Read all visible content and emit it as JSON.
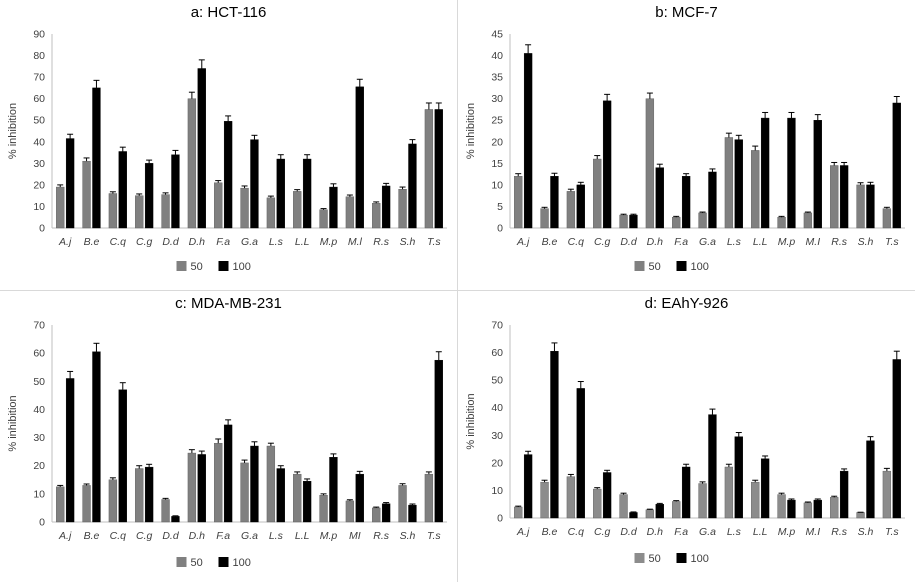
{
  "legend_labels": [
    "50",
    "100"
  ],
  "colors": {
    "series50_gray": "#808080",
    "series50_light": "#8c8c8c",
    "series100": "#000000",
    "axis": "#bfbfbf",
    "error": "#000000"
  },
  "chart_data": [
    {
      "type": "bar",
      "title": "a: HCT-116",
      "ylabel": "% inhibition",
      "ylim": [
        0,
        90
      ],
      "ystep": 10,
      "categories": [
        "A.j",
        "B.e",
        "C.q",
        "C.g",
        "D.d",
        "D.h",
        "F.a",
        "G.a",
        "L.s",
        "L.L",
        "M.p",
        "M.l",
        "R.s",
        "S.h",
        "T.s"
      ],
      "series": [
        {
          "name": "50",
          "values": [
            19,
            31,
            16,
            15,
            15.5,
            60,
            21,
            18.5,
            14,
            17,
            8.5,
            14.5,
            11.5,
            18,
            55
          ],
          "errors": [
            1,
            1.5,
            0.8,
            0.8,
            0.8,
            3,
            1,
            1,
            0.8,
            0.8,
            0.5,
            0.8,
            0.6,
            1,
            3
          ]
        },
        {
          "name": "100",
          "values": [
            41.5,
            65,
            35.5,
            30,
            34,
            74,
            49.5,
            41,
            32,
            32,
            19,
            65.5,
            19.5,
            39,
            55
          ],
          "errors": [
            2,
            3.5,
            2,
            1.5,
            2,
            4,
            2.5,
            2,
            2,
            2,
            1.5,
            3.5,
            1.2,
            2,
            3
          ]
        }
      ],
      "legend_position": "bottom"
    },
    {
      "type": "bar",
      "title": "b: MCF-7",
      "ylabel": "% inhibition",
      "ylim": [
        0,
        45
      ],
      "ystep": 5,
      "categories": [
        "A.j",
        "B.e",
        "C.q",
        "C.g",
        "D.d",
        "D.h",
        "F.a",
        "G.a",
        "L.s",
        "L.L",
        "M.p",
        "M.I",
        "R.s",
        "S.h",
        "T.s"
      ],
      "series": [
        {
          "name": "50",
          "values": [
            12,
            4.5,
            8.5,
            16,
            3,
            30,
            2.5,
            3.5,
            21,
            18,
            2.5,
            3.5,
            14.5,
            10,
            4.5
          ],
          "errors": [
            0.6,
            0.3,
            0.5,
            0.8,
            0.2,
            1.3,
            0.2,
            0.2,
            1,
            1,
            0.2,
            0.2,
            0.7,
            0.5,
            0.3
          ]
        },
        {
          "name": "100",
          "values": [
            40.5,
            12,
            10,
            29.5,
            3,
            14,
            12,
            13,
            20.5,
            25.5,
            25.5,
            25,
            14.5,
            10,
            29
          ],
          "errors": [
            2,
            0.7,
            0.6,
            1.5,
            0.2,
            0.8,
            0.6,
            0.7,
            1,
            1.3,
            1.3,
            1.3,
            0.7,
            0.6,
            1.5
          ]
        }
      ],
      "legend_position": "bottom"
    },
    {
      "type": "bar",
      "title": "c: MDA-MB-231",
      "ylabel": "% inhibition",
      "ylim": [
        0,
        70
      ],
      "ystep": 10,
      "categories": [
        "A.j",
        "B.e",
        "C.q",
        "C.g",
        "D.d",
        "D.h",
        "F.a",
        "G.a",
        "L.s",
        "L.L",
        "M.p",
        "MI",
        "R.s",
        "S.h",
        "T.s"
      ],
      "series": [
        {
          "name": "50",
          "values": [
            12.5,
            13,
            15,
            19,
            8,
            24.5,
            28,
            21,
            27,
            17,
            9.5,
            7.5,
            5,
            13,
            17
          ],
          "errors": [
            0.5,
            0.5,
            0.7,
            1,
            0.4,
            1.2,
            1.5,
            1,
            1,
            0.8,
            0.5,
            0.4,
            0.3,
            0.6,
            0.8
          ]
        },
        {
          "name": "100",
          "values": [
            51,
            60.5,
            47,
            19.5,
            2,
            24,
            34.5,
            27,
            19,
            14.5,
            23,
            17,
            6.5,
            6,
            57.5
          ],
          "errors": [
            2.5,
            3,
            2.5,
            1,
            0.2,
            1.2,
            1.8,
            1.5,
            1,
            0.8,
            1.2,
            1,
            0.4,
            0.4,
            3
          ]
        }
      ],
      "legend_position": "bottom"
    },
    {
      "type": "bar",
      "title": "d: EAhY-926",
      "ylabel": "% inhibition",
      "ylim": [
        0,
        70
      ],
      "ystep": 10,
      "categories": [
        "A.j",
        "B.e",
        "C.q",
        "C.g",
        "D.d",
        "D.h",
        "F.a",
        "G.a",
        "L.s",
        "L.L",
        "M.p",
        "M.I",
        "R.s",
        "S.h",
        "T.s"
      ],
      "series": [
        {
          "name": "50",
          "values": [
            4,
            13,
            15,
            10.5,
            8.5,
            3,
            6,
            12.5,
            18.5,
            13,
            8.5,
            5.5,
            7.5,
            2,
            17
          ],
          "errors": [
            0.3,
            0.7,
            0.8,
            0.5,
            0.5,
            0.2,
            0.3,
            0.6,
            1,
            0.7,
            0.5,
            0.3,
            0.4,
            0.1,
            1
          ]
        },
        {
          "name": "100",
          "values": [
            23,
            60.5,
            47,
            16.5,
            2,
            5,
            18.5,
            37.5,
            29.5,
            21.5,
            6.5,
            6.5,
            17,
            28,
            57.5
          ],
          "errors": [
            1.2,
            3,
            2.5,
            0.8,
            0.2,
            0.3,
            1,
            2,
            1.5,
            1,
            0.4,
            0.4,
            0.8,
            1.5,
            3
          ]
        }
      ],
      "legend_position": "bottom"
    }
  ]
}
